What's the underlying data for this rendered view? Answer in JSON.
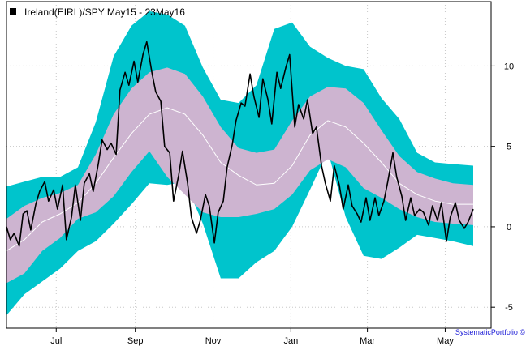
{
  "chart_data": {
    "type": "line",
    "legend_label": "Ireland(EIRL)/SPY May15 - 23May16",
    "source_label": "SystematicPortfolio ©",
    "legend_position": "top-left",
    "grid": true,
    "x_tick_labels": [
      "Jul",
      "Sep",
      "Nov",
      "Jan",
      "Mar",
      "May"
    ],
    "x_tick_positions": [
      "2015-07-01",
      "2015-09-01",
      "2015-11-01",
      "2016-01-01",
      "2016-03-01",
      "2016-05-01"
    ],
    "xlim": [
      "2015-05-23",
      "2016-06-06"
    ],
    "y_ticks": [
      -5,
      0,
      5,
      10
    ],
    "y_tick_labels": [
      "-5",
      "0",
      "5",
      "10"
    ],
    "ylim": [
      -6.3,
      14.0
    ],
    "colors": {
      "outer_band": "#00c4cc",
      "inner_band": "#cdb4d0",
      "mean_line": "#ffffff",
      "price_line": "#000000",
      "grid": "#c8c8c8",
      "legend_marker": "#000000",
      "source_text": "#1a1ad6"
    },
    "bands": {
      "dates": [
        "2015-05-23",
        "2015-06-06",
        "2015-06-20",
        "2015-07-04",
        "2015-07-18",
        "2015-08-01",
        "2015-08-15",
        "2015-08-29",
        "2015-09-12",
        "2015-09-26",
        "2015-10-10",
        "2015-10-24",
        "2015-11-07",
        "2015-11-21",
        "2015-12-05",
        "2015-12-19",
        "2016-01-02",
        "2016-01-16",
        "2016-01-30",
        "2016-02-13",
        "2016-02-27",
        "2016-03-12",
        "2016-03-26",
        "2016-04-09",
        "2016-04-23",
        "2016-05-07",
        "2016-05-23"
      ],
      "mean": [
        -1.5,
        -0.8,
        0.3,
        0.8,
        1.5,
        2.7,
        4.3,
        5.8,
        7.0,
        7.4,
        7.0,
        5.7,
        4.0,
        3.2,
        2.6,
        2.7,
        3.8,
        5.7,
        6.6,
        6.2,
        5.2,
        4.0,
        2.7,
        2.0,
        1.6,
        1.4,
        1.4
      ],
      "inner_upper": [
        0.5,
        1.3,
        1.8,
        2.1,
        2.6,
        4.5,
        7.0,
        8.6,
        9.6,
        9.9,
        9.5,
        8.1,
        6.2,
        4.9,
        4.6,
        4.8,
        6.6,
        8.1,
        8.7,
        8.6,
        7.7,
        6.0,
        4.4,
        3.4,
        3.0,
        2.7,
        2.6
      ],
      "inner_lower": [
        -3.5,
        -2.9,
        -1.5,
        -0.7,
        0.5,
        0.9,
        1.9,
        3.4,
        4.7,
        3.1,
        2.0,
        0.9,
        0.6,
        0.6,
        0.8,
        1.1,
        2.0,
        3.5,
        4.2,
        3.7,
        2.4,
        1.8,
        1.1,
        0.6,
        0.3,
        0.2,
        0.1
      ],
      "outer_upper": [
        2.5,
        2.8,
        3.1,
        3.1,
        3.7,
        6.5,
        10.6,
        12.5,
        13.4,
        13.2,
        12.5,
        9.9,
        7.9,
        7.7,
        8.8,
        12.3,
        12.7,
        11.2,
        10.5,
        10.0,
        9.8,
        8.0,
        6.7,
        4.6,
        4.0,
        3.9,
        3.8
      ],
      "outer_lower": [
        -5.5,
        -4.2,
        -3.4,
        -2.6,
        -1.5,
        -0.9,
        0.2,
        1.4,
        2.7,
        2.6,
        2.8,
        0.2,
        -3.2,
        -3.2,
        -2.2,
        -1.5,
        0.0,
        2.3,
        4.7,
        0.6,
        -1.8,
        -2.0,
        -1.3,
        -0.5,
        -0.7,
        -0.9,
        -1.2
      ]
    },
    "series": [
      {
        "name": "Ireland(EIRL)/SPY May15 - 23May16",
        "x": [
          "2015-05-23",
          "2015-05-26",
          "2015-05-29",
          "2015-06-02",
          "2015-06-05",
          "2015-06-08",
          "2015-06-11",
          "2015-06-15",
          "2015-06-18",
          "2015-06-22",
          "2015-06-25",
          "2015-06-29",
          "2015-07-02",
          "2015-07-06",
          "2015-07-09",
          "2015-07-13",
          "2015-07-16",
          "2015-07-20",
          "2015-07-23",
          "2015-07-27",
          "2015-07-30",
          "2015-08-03",
          "2015-08-06",
          "2015-08-10",
          "2015-08-13",
          "2015-08-17",
          "2015-08-20",
          "2015-08-24",
          "2015-08-27",
          "2015-08-31",
          "2015-09-03",
          "2015-09-07",
          "2015-09-10",
          "2015-09-14",
          "2015-09-17",
          "2015-09-21",
          "2015-09-24",
          "2015-09-28",
          "2015-10-01",
          "2015-10-05",
          "2015-10-08",
          "2015-10-12",
          "2015-10-15",
          "2015-10-19",
          "2015-10-22",
          "2015-10-26",
          "2015-10-29",
          "2015-11-02",
          "2015-11-05",
          "2015-11-09",
          "2015-11-12",
          "2015-11-16",
          "2015-11-19",
          "2015-11-23",
          "2015-11-26",
          "2015-11-30",
          "2015-12-03",
          "2015-12-07",
          "2015-12-10",
          "2015-12-14",
          "2015-12-17",
          "2015-12-21",
          "2015-12-24",
          "2015-12-28",
          "2015-12-31",
          "2016-01-04",
          "2016-01-07",
          "2016-01-11",
          "2016-01-14",
          "2016-01-18",
          "2016-01-21",
          "2016-01-25",
          "2016-01-28",
          "2016-02-01",
          "2016-02-04",
          "2016-02-08",
          "2016-02-11",
          "2016-02-15",
          "2016-02-18",
          "2016-02-22",
          "2016-02-25",
          "2016-02-29",
          "2016-03-03",
          "2016-03-07",
          "2016-03-10",
          "2016-03-14",
          "2016-03-17",
          "2016-03-21",
          "2016-03-24",
          "2016-03-28",
          "2016-03-31",
          "2016-04-04",
          "2016-04-07",
          "2016-04-11",
          "2016-04-14",
          "2016-04-18",
          "2016-04-21",
          "2016-04-25",
          "2016-04-28",
          "2016-05-02",
          "2016-05-05",
          "2016-05-09",
          "2016-05-12",
          "2016-05-16",
          "2016-05-19",
          "2016-05-23"
        ],
        "y": [
          0.0,
          -0.8,
          -0.4,
          -1.2,
          0.8,
          1.0,
          -0.2,
          1.4,
          2.2,
          2.8,
          1.6,
          2.3,
          1.1,
          2.6,
          -0.8,
          0.6,
          2.6,
          0.4,
          2.7,
          3.3,
          2.2,
          3.9,
          5.4,
          4.8,
          5.2,
          4.5,
          8.5,
          9.6,
          8.8,
          10.3,
          9.0,
          10.7,
          11.5,
          9.6,
          8.4,
          7.8,
          5.0,
          4.6,
          1.6,
          3.2,
          4.7,
          2.7,
          0.6,
          -0.4,
          0.4,
          2.0,
          1.3,
          -1.0,
          0.9,
          1.6,
          3.7,
          5.1,
          6.6,
          7.7,
          7.5,
          9.5,
          8.1,
          6.8,
          9.2,
          7.9,
          6.4,
          9.6,
          8.6,
          9.9,
          10.7,
          6.2,
          7.6,
          6.7,
          7.9,
          5.8,
          6.2,
          3.8,
          2.7,
          1.6,
          3.8,
          2.6,
          1.1,
          2.6,
          1.3,
          0.8,
          0.3,
          1.8,
          0.4,
          1.8,
          0.7,
          1.6,
          2.8,
          4.6,
          3.1,
          1.9,
          0.4,
          1.8,
          0.7,
          1.1,
          0.9,
          0.1,
          1.3,
          0.4,
          1.5,
          -0.9,
          0.6,
          1.5,
          0.4,
          -0.1,
          0.3,
          1.1
        ]
      }
    ]
  }
}
